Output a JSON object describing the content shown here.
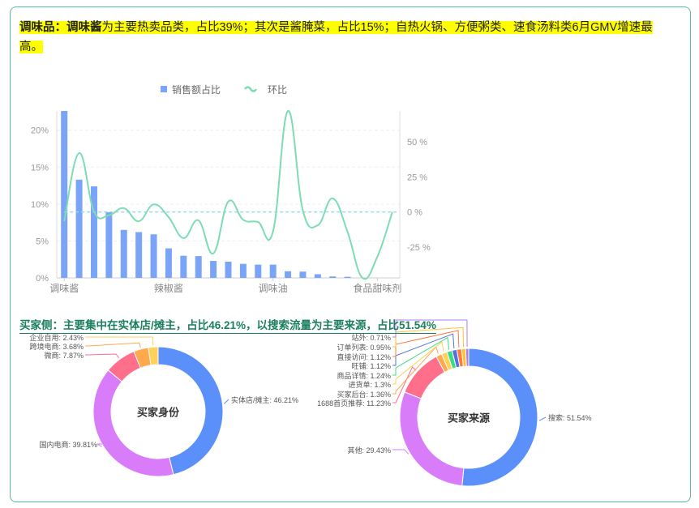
{
  "headline": {
    "bold": "调味品：调味酱",
    "text": "为主要热卖品类，占比39%；其次是酱腌菜，占比15%；自热火锅、方便粥类、速食汤料类6月GMV增速最高。"
  },
  "subheadline": "买家侧：主要集中在实体店/摊主，占比46.21%，以搜索流量为主要来源，占比51.54%",
  "chart_data": [
    {
      "type": "bar",
      "legend": [
        {
          "name": "销售额占比",
          "icon": "square",
          "color": "#7aa4f7"
        },
        {
          "name": "环比",
          "icon": "line",
          "color": "#7ddcb4"
        }
      ],
      "legend_position": "top-center",
      "categories_labeled": [
        "调味酱",
        "辣椒酱",
        "调味油",
        "食品甜味剂"
      ],
      "label_indices": [
        0,
        7,
        14,
        21
      ],
      "category_count": 23,
      "series": [
        {
          "name": "销售额占比",
          "type": "bar",
          "axis": "left",
          "color": "#7aa4f7",
          "values": [
            22.6,
            13.3,
            12.4,
            8.9,
            6.5,
            6.2,
            5.9,
            4.0,
            3.0,
            2.95,
            2.3,
            2.2,
            1.9,
            1.8,
            1.8,
            0.9,
            0.85,
            0.5,
            0.2,
            0.15,
            0,
            0,
            0
          ]
        },
        {
          "name": "环比",
          "type": "line",
          "smooth": true,
          "axis": "right",
          "color": "#7ddcb4",
          "values": [
            -6.6,
            42,
            0.2,
            -2.3,
            2.7,
            -6.6,
            5.4,
            -3.7,
            -18.6,
            -6,
            -29.5,
            7.4,
            -5.6,
            -7.2,
            -14,
            72,
            1.2,
            -9.5,
            9.7,
            -14.3,
            -47,
            -31.8,
            0
          ]
        }
      ],
      "left_axis": {
        "ticks": [
          "0%",
          "5%",
          "10%",
          "15%",
          "20%"
        ],
        "tick_values": [
          0,
          5,
          10,
          15,
          20
        ],
        "range": [
          0,
          22.6
        ]
      },
      "right_axis": {
        "ticks": [
          "-25 %",
          "0 %",
          "25 %",
          "50 %"
        ],
        "tick_values": [
          -25,
          0,
          25,
          50
        ],
        "range": [
          -47,
          72
        ]
      },
      "reference_line": {
        "axis": "right",
        "value": 0,
        "style": "dashed",
        "color": "#9fd6e8"
      },
      "grid": "horizontal-dashed"
    },
    {
      "type": "pie",
      "donut": true,
      "title": "买家身份",
      "slices": [
        {
          "name": "实体店/摊主",
          "value": 46.21,
          "label": "实体店/摊主: 46.21%",
          "color": "#5b8ff9"
        },
        {
          "name": "国内电商",
          "value": 39.81,
          "label": "国内电商: 39.81%",
          "color": "#d87cf9"
        },
        {
          "name": "微商",
          "value": 7.87,
          "label": "微商: 7.87%",
          "color": "#ff6e8a"
        },
        {
          "name": "跨境电商",
          "value": 3.68,
          "label": "跨境电商: 3.68%",
          "color": "#ffa94d"
        },
        {
          "name": "企业自用",
          "value": 2.43,
          "label": "企业自用: 2.43%",
          "color": "#ffd05a"
        }
      ]
    },
    {
      "type": "pie",
      "donut": true,
      "title": "买家来源",
      "slices": [
        {
          "name": "搜索",
          "value": 51.54,
          "label": "搜索: 51.54%",
          "color": "#5b8ff9"
        },
        {
          "name": "其他",
          "value": 29.43,
          "label": "其他: 29.43%",
          "color": "#d87cf9"
        },
        {
          "name": "1688首页推荐",
          "value": 11.23,
          "label": "1688首页推荐: 11.23%",
          "color": "#ff6e8a"
        },
        {
          "name": "买家后台",
          "value": 1.36,
          "label": "买家后台: 1.36%",
          "color": "#ffa94d"
        },
        {
          "name": "进货单",
          "value": 1.3,
          "label": "进货单: 1.3%",
          "color": "#ffd05a"
        },
        {
          "name": "商品详情",
          "value": 1.24,
          "label": "商品详情: 1.24%",
          "color": "#3ddc84"
        },
        {
          "name": "旺铺",
          "value": 1.12,
          "label": "旺铺: 1.12%",
          "color": "#5470e0"
        },
        {
          "name": "直接访问",
          "value": 1.12,
          "label": "直接访问: 1.12%",
          "color": "#ff7a3d"
        },
        {
          "name": "订单列表",
          "value": 0.95,
          "label": "订单列表: 0.95%",
          "color": "#ffc233"
        },
        {
          "name": "站外",
          "value": 0.71,
          "label": "站外: 0.71%",
          "color": "#b07ce8"
        }
      ]
    }
  ]
}
